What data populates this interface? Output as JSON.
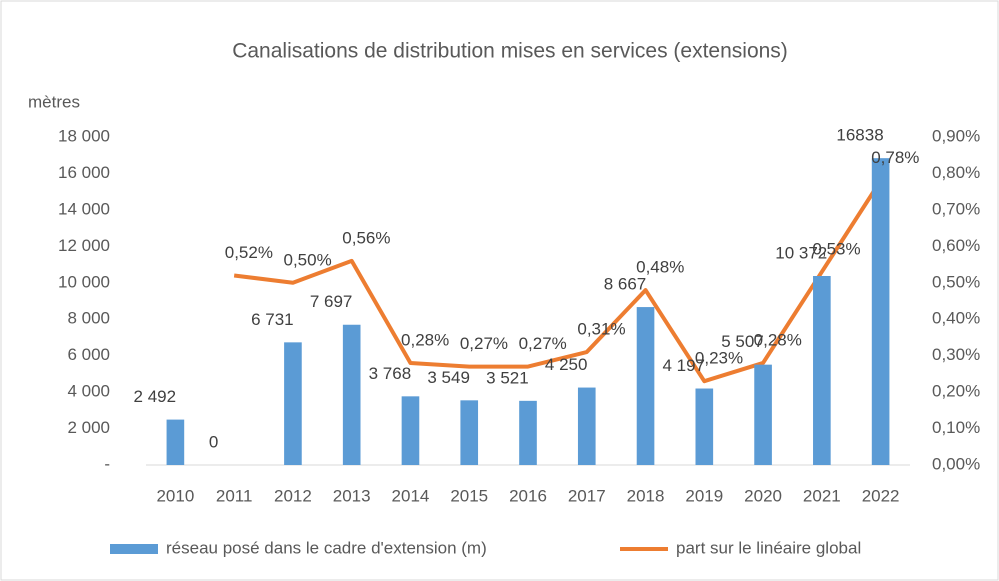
{
  "chart_data": {
    "type": "bar",
    "title": "Canalisations de distribution mises en services (extensions)",
    "y_label": "mètres",
    "categories": [
      "2010",
      "2011",
      "2012",
      "2013",
      "2014",
      "2015",
      "2016",
      "2017",
      "2018",
      "2019",
      "2020",
      "2021",
      "2022"
    ],
    "series": [
      {
        "name": "réseau posé dans le cadre d'extension (m)",
        "color": "#5b9bd5",
        "type": "bar",
        "values": [
          2492,
          0,
          6731,
          7697,
          3768,
          3549,
          3521,
          4250,
          8667,
          4197,
          5507,
          10372,
          16838
        ],
        "value_labels": [
          "2 492",
          "0",
          "6 731",
          "7 697",
          "3 768",
          "3 549",
          "3 521",
          "4 250",
          "8 667",
          "4 197",
          "5 507",
          "10 372",
          "16838"
        ]
      },
      {
        "name": "part sur le linéaire global",
        "color": "#ed7d31",
        "type": "line",
        "axis": "y2",
        "values": [
          null,
          0.52,
          0.5,
          0.56,
          0.28,
          0.27,
          0.27,
          0.31,
          0.48,
          0.23,
          0.28,
          0.53,
          0.78
        ],
        "value_labels": [
          null,
          "0,52%",
          "0,50%",
          "0,56%",
          "0,28%",
          "0,27%",
          "0,27%",
          "0,31%",
          "0,48%",
          "0,23%",
          "0,28%",
          "0,53%",
          "0,78%"
        ]
      }
    ],
    "ylim": [
      0,
      18000
    ],
    "yticks": [
      {
        "value": 0,
        "label": "-"
      },
      {
        "value": 2000,
        "label": "2 000"
      },
      {
        "value": 4000,
        "label": "4 000"
      },
      {
        "value": 6000,
        "label": "6 000"
      },
      {
        "value": 8000,
        "label": "8 000"
      },
      {
        "value": 10000,
        "label": "10 000"
      },
      {
        "value": 12000,
        "label": "12 000"
      },
      {
        "value": 14000,
        "label": "14 000"
      },
      {
        "value": 16000,
        "label": "16 000"
      },
      {
        "value": 18000,
        "label": "18 000"
      }
    ],
    "y2lim": [
      0,
      0.9
    ],
    "y2ticks": [
      {
        "value": 0,
        "label": "0,00%"
      },
      {
        "value": 0.1,
        "label": "0,10%"
      },
      {
        "value": 0.2,
        "label": "0,20%"
      },
      {
        "value": 0.3,
        "label": "0,30%"
      },
      {
        "value": 0.4,
        "label": "0,40%"
      },
      {
        "value": 0.5,
        "label": "0,50%"
      },
      {
        "value": 0.6,
        "label": "0,60%"
      },
      {
        "value": 0.7,
        "label": "0,70%"
      },
      {
        "value": 0.8,
        "label": "0,80%"
      },
      {
        "value": 0.9,
        "label": "0,90%"
      }
    ],
    "legend": "bottom"
  }
}
